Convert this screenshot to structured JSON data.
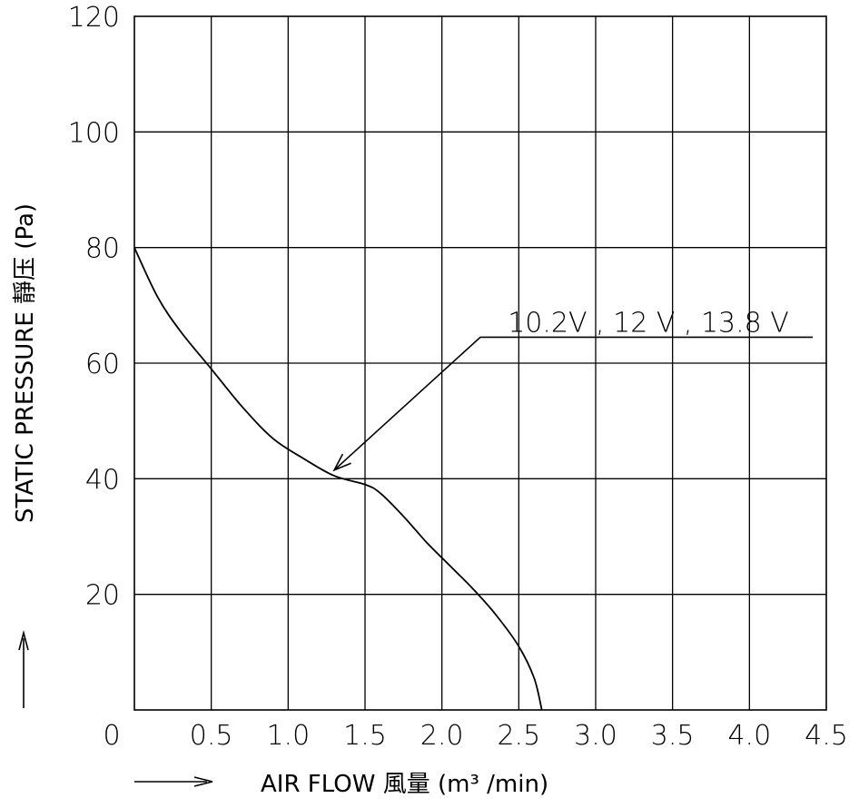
{
  "chart_data": {
    "type": "line",
    "title": "",
    "xlabel": "AIR FLOW 風量 (m³ /min)",
    "ylabel": "STATIC PRESSURE 靜压 (Pa)",
    "xlim": [
      0,
      4.5
    ],
    "ylim": [
      0,
      120
    ],
    "x_ticks": [
      0,
      0.5,
      1.0,
      1.5,
      2.0,
      2.5,
      3.0,
      3.5,
      4.0,
      4.5
    ],
    "x_tick_labels": [
      "0",
      "0.5",
      "1.0",
      "1.5",
      "2.0",
      "2.5",
      "3.0",
      "3.5",
      "4.0",
      "4.5"
    ],
    "y_ticks": [
      20,
      40,
      60,
      80,
      100,
      120
    ],
    "y_tick_labels": [
      "20",
      "40",
      "60",
      "80",
      "100",
      "120"
    ],
    "grid": true,
    "legend": "none",
    "series": [
      {
        "x": [
          0,
          0.15,
          0.3,
          0.5,
          0.7,
          0.9,
          1.1,
          1.3,
          1.5,
          1.6,
          1.75,
          1.9,
          2.05,
          2.2,
          2.35,
          2.5,
          2.6,
          2.65
        ],
        "y": [
          80,
          71.5,
          65.5,
          59,
          52.5,
          47,
          43.5,
          40.5,
          39,
          37.5,
          33.5,
          29,
          25,
          21,
          16.5,
          11,
          5.5,
          0
        ]
      }
    ],
    "annotations": [
      {
        "text": "10.2V , 12 V , 13.8 V",
        "x": 2.25,
        "y": 64.5,
        "arrow_to": [
          1.3,
          41.5
        ]
      }
    ]
  }
}
